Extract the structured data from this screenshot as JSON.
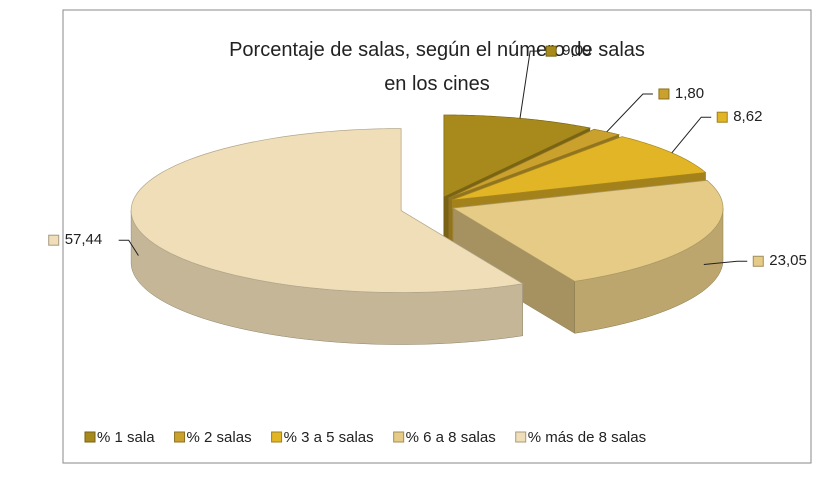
{
  "chart_data": {
    "type": "pie3d",
    "title": "Porcentaje de salas, según el número de salas en los cines",
    "categories": [
      "% 1 sala",
      "% 2 salas",
      "% 3 a 5 salas",
      "% 6 a 8 salas",
      "% más de 8 salas"
    ],
    "values": [
      9.09,
      1.8,
      8.62,
      23.05,
      57.44
    ],
    "value_labels": [
      "9,09",
      "1,80",
      "8,62",
      "23,05",
      "57,44"
    ],
    "colors": [
      "#a88a1c",
      "#c9a12c",
      "#e2b526",
      "#e5cb85",
      "#efdeb8"
    ],
    "legend": "bottom"
  }
}
